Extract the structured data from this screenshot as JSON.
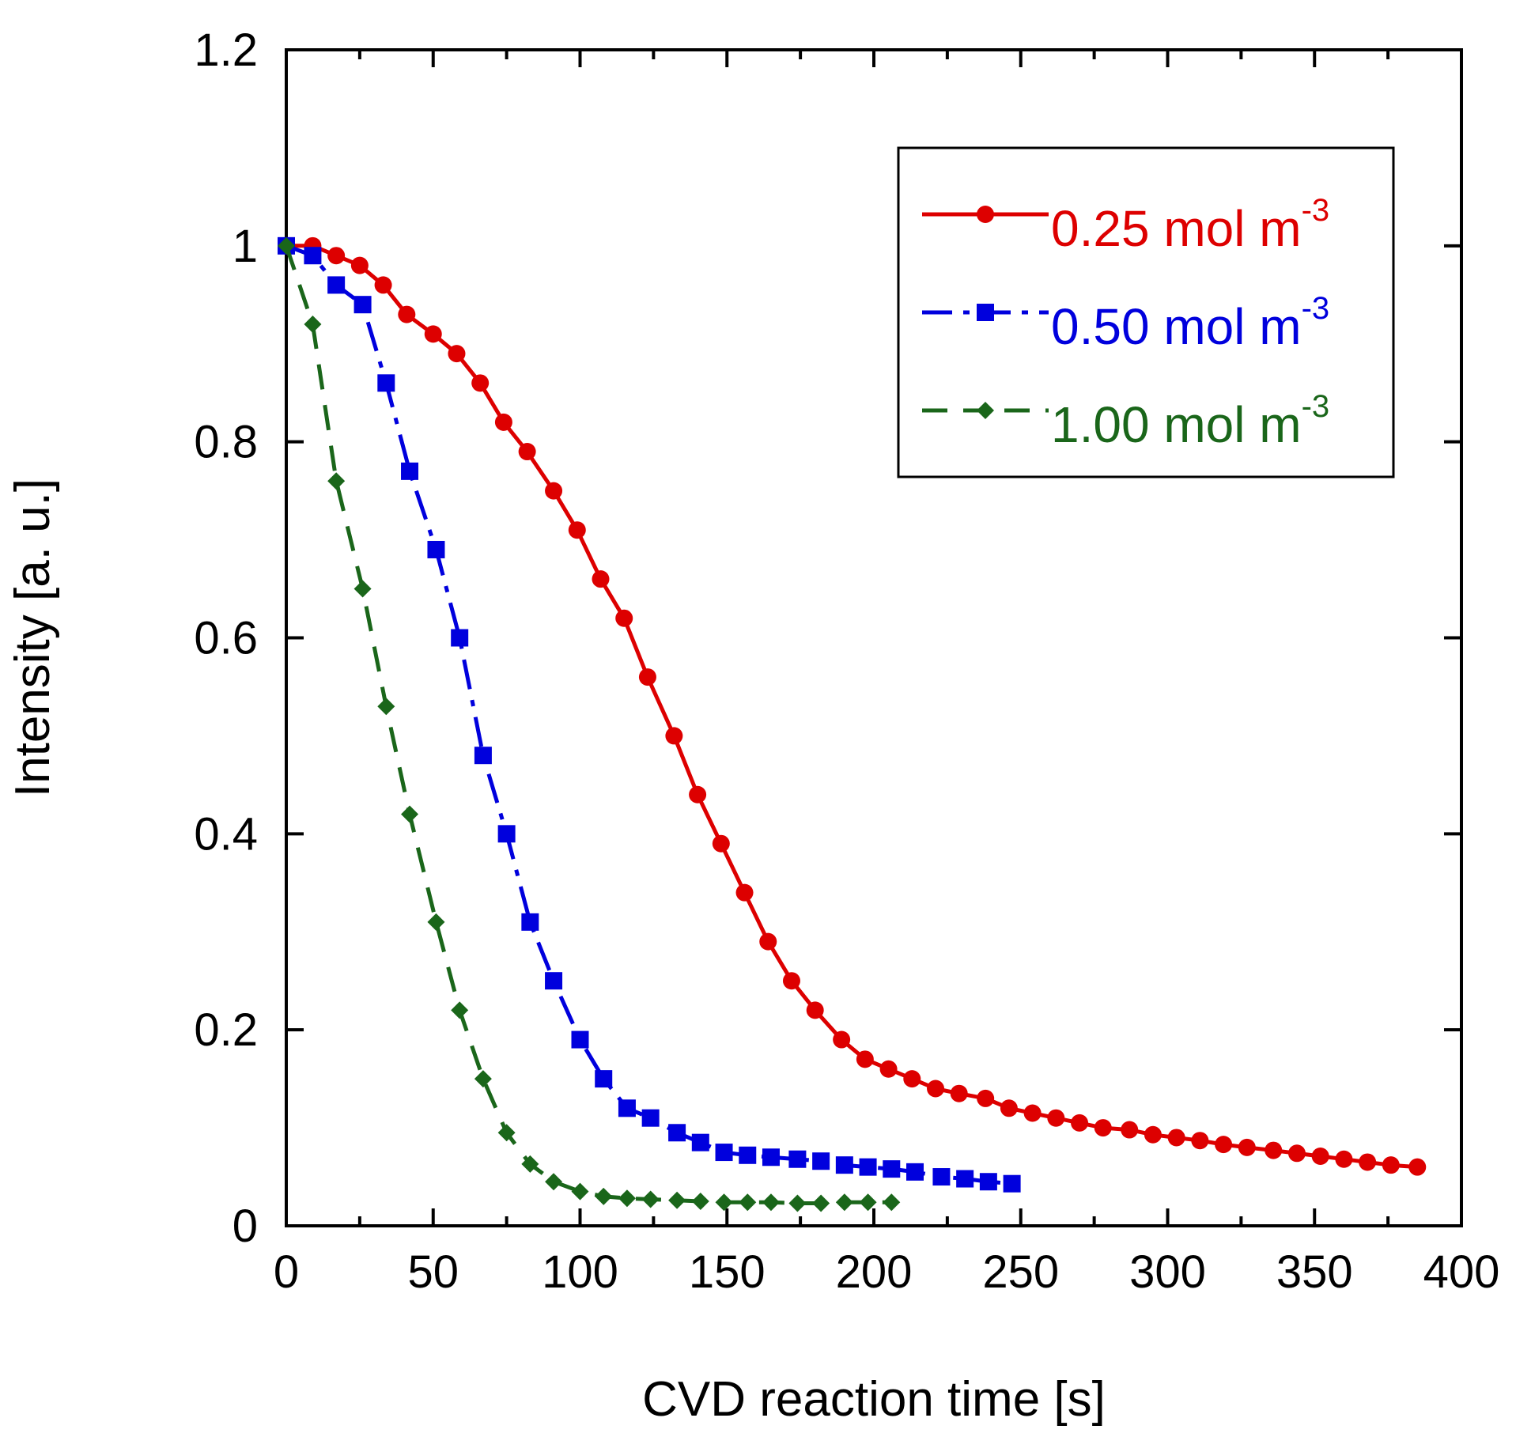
{
  "chart_data": {
    "type": "line",
    "title": "",
    "xlabel": "CVD reaction time [s]",
    "ylabel": "Intensity [a. u.]",
    "xlim": [
      0,
      400
    ],
    "ylim": [
      0,
      1.2
    ],
    "x_ticks": [
      "0",
      "50",
      "100",
      "150",
      "200",
      "250",
      "300",
      "350",
      "400"
    ],
    "y_ticks": [
      "0",
      "0.2",
      "0.4",
      "0.6",
      "0.8",
      "1",
      "1.2"
    ],
    "grid": false,
    "legend_position": "top-right",
    "series": [
      {
        "name": "0.25 mol m",
        "name_superscript": "-3",
        "color": "#dd0000",
        "marker": "circle",
        "line_style": "solid",
        "x": [
          0,
          9,
          17,
          25,
          33,
          41,
          50,
          58,
          66,
          74,
          82,
          91,
          99,
          107,
          115,
          123,
          132,
          140,
          148,
          156,
          164,
          172,
          180,
          189,
          197,
          205,
          213,
          221,
          229,
          238,
          246,
          254,
          262,
          270,
          278,
          287,
          295,
          303,
          311,
          319,
          327,
          336,
          344,
          352,
          360,
          368,
          376,
          385
        ],
        "y": [
          1.0,
          1.0,
          0.99,
          0.98,
          0.96,
          0.93,
          0.91,
          0.89,
          0.86,
          0.82,
          0.79,
          0.75,
          0.71,
          0.66,
          0.62,
          0.56,
          0.5,
          0.44,
          0.39,
          0.34,
          0.29,
          0.25,
          0.22,
          0.19,
          0.17,
          0.16,
          0.15,
          0.14,
          0.135,
          0.13,
          0.12,
          0.115,
          0.11,
          0.105,
          0.1,
          0.098,
          0.093,
          0.09,
          0.087,
          0.083,
          0.08,
          0.077,
          0.074,
          0.071,
          0.068,
          0.065,
          0.062,
          0.06
        ]
      },
      {
        "name": "0.50 mol m",
        "name_superscript": "-3",
        "color": "#0000dd",
        "marker": "square",
        "line_style": "dash-dot",
        "x": [
          0,
          9,
          17,
          26,
          34,
          42,
          51,
          59,
          67,
          75,
          83,
          91,
          100,
          108,
          116,
          124,
          133,
          141,
          149,
          157,
          165,
          174,
          182,
          190,
          198,
          206,
          214,
          223,
          231,
          239,
          247
        ],
        "y": [
          1.0,
          0.99,
          0.96,
          0.94,
          0.86,
          0.77,
          0.69,
          0.6,
          0.48,
          0.4,
          0.31,
          0.25,
          0.19,
          0.15,
          0.12,
          0.11,
          0.095,
          0.085,
          0.075,
          0.072,
          0.07,
          0.068,
          0.066,
          0.062,
          0.06,
          0.058,
          0.055,
          0.05,
          0.048,
          0.045,
          0.043
        ]
      },
      {
        "name": "1.00 mol m",
        "name_superscript": "-3",
        "color": "#1a661a",
        "marker": "diamond",
        "line_style": "dashed",
        "x": [
          0,
          9,
          17,
          26,
          34,
          42,
          51,
          59,
          67,
          75,
          83,
          91,
          100,
          108,
          116,
          124,
          133,
          141,
          149,
          157,
          165,
          174,
          182,
          190,
          198,
          206
        ],
        "y": [
          1.0,
          0.92,
          0.76,
          0.65,
          0.53,
          0.42,
          0.31,
          0.22,
          0.15,
          0.095,
          0.063,
          0.045,
          0.035,
          0.03,
          0.028,
          0.027,
          0.026,
          0.025,
          0.024,
          0.024,
          0.024,
          0.023,
          0.023,
          0.024,
          0.024,
          0.024
        ]
      }
    ]
  }
}
